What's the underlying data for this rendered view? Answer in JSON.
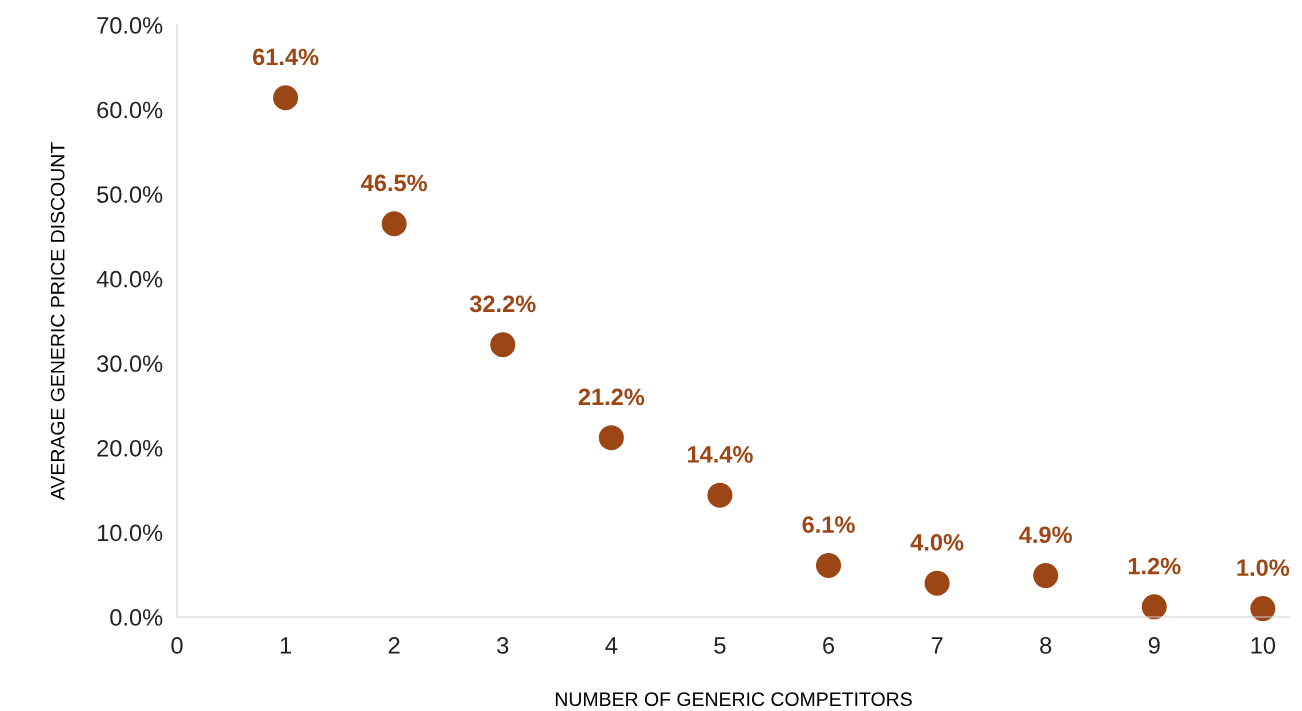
{
  "chart_data": {
    "type": "scatter",
    "xlabel": "NUMBER OF GENERIC COMPETITORS",
    "ylabel": "AVERAGE GENERIC PRICE DISCOUNT",
    "x": [
      1,
      2,
      3,
      4,
      5,
      6,
      7,
      8,
      9,
      10
    ],
    "series": [
      {
        "color": "#9c4616",
        "values": [
          61.4,
          46.5,
          32.2,
          21.2,
          14.4,
          6.1,
          4.0,
          4.9,
          1.2,
          1.0
        ],
        "value_labels": [
          "61.4%",
          "46.5%",
          "32.2%",
          "21.2%",
          "14.4%",
          "6.1%",
          "4.0%",
          "4.9%",
          "1.2%",
          "1.0%"
        ]
      }
    ],
    "xlim": [
      0,
      10.25
    ],
    "xticks": [
      0,
      1,
      2,
      3,
      4,
      5,
      6,
      7,
      8,
      9,
      10
    ],
    "ylim": [
      0,
      70
    ],
    "yticks": [
      {
        "value": 0,
        "label": "0.0%"
      },
      {
        "value": 10,
        "label": "10.0%"
      },
      {
        "value": 20,
        "label": "20.0%"
      },
      {
        "value": 30,
        "label": "30.0%"
      },
      {
        "value": 40,
        "label": "40.0%"
      },
      {
        "value": 50,
        "label": "50.0%"
      },
      {
        "value": 60,
        "label": "60.0%"
      },
      {
        "value": 70,
        "label": "70.0%"
      }
    ],
    "grid": false,
    "legend": false,
    "marker": "circle"
  }
}
